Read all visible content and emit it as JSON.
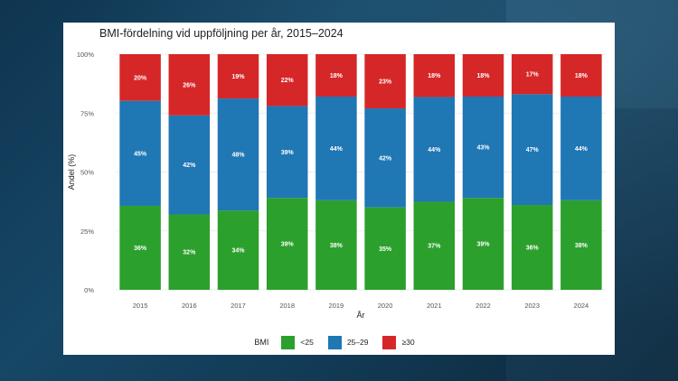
{
  "chart_data": {
    "type": "bar",
    "stacked": true,
    "title": "BMI-fördelning vid uppföljning per år, 2015–2024",
    "xlabel": "År",
    "ylabel": "Andel (%)",
    "ylim": [
      0,
      100
    ],
    "yticks": [
      "0%",
      "25%",
      "50%",
      "75%",
      "100%"
    ],
    "categories": [
      "2015",
      "2016",
      "2017",
      "2018",
      "2019",
      "2020",
      "2021",
      "2022",
      "2023",
      "2024"
    ],
    "series": [
      {
        "name": "<25",
        "color": "#2ca02c",
        "values": [
          36,
          32,
          34,
          39,
          38,
          35,
          37,
          39,
          36,
          38
        ]
      },
      {
        "name": "25–29",
        "color": "#1f77b4",
        "values": [
          45,
          42,
          48,
          39,
          44,
          42,
          44,
          43,
          47,
          44
        ]
      },
      {
        "name": "≥30",
        "color": "#d62728",
        "values": [
          20,
          26,
          19,
          22,
          18,
          23,
          18,
          18,
          17,
          18
        ]
      }
    ],
    "legend_title": "BMI",
    "legend_position": "bottom",
    "grid": true
  }
}
